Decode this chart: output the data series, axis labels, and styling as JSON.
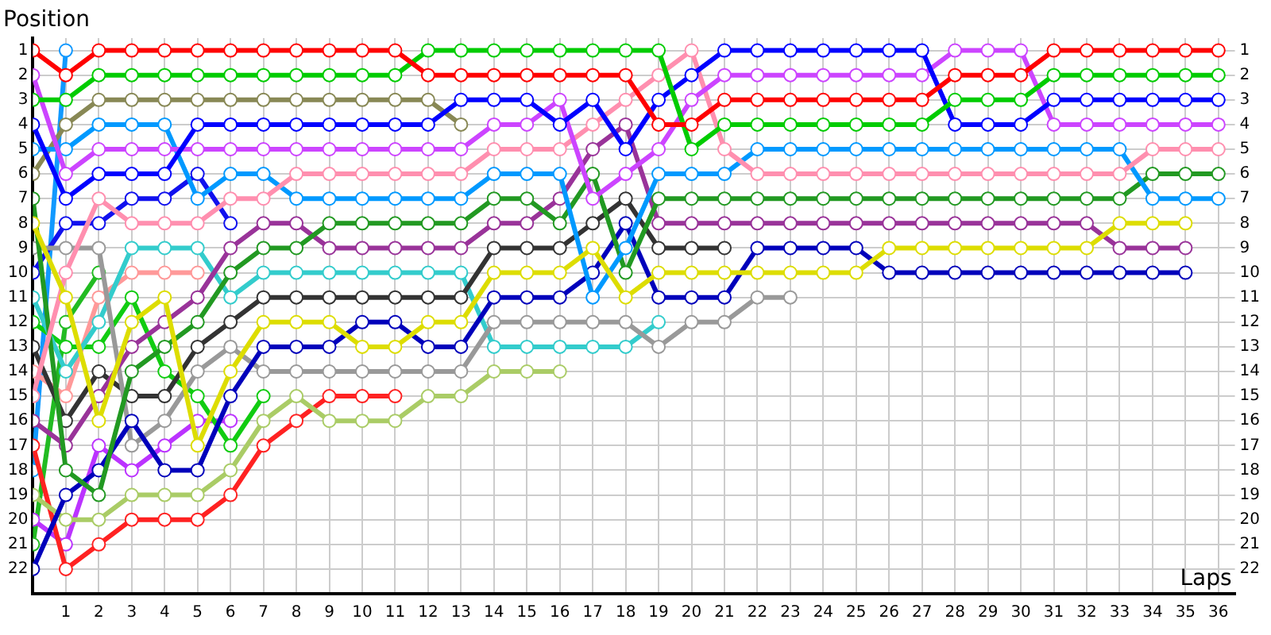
{
  "chart_data": {
    "type": "line",
    "xlabel": "Laps",
    "ylabel": "Position",
    "marker": "circle",
    "grid": true,
    "x": [
      0,
      1,
      2,
      3,
      4,
      5,
      6,
      7,
      8,
      9,
      10,
      11,
      12,
      13,
      14,
      15,
      16,
      17,
      18,
      19,
      20,
      21,
      22,
      23,
      24,
      25,
      26,
      27,
      28,
      29,
      30,
      31,
      32,
      33,
      34,
      35,
      36
    ],
    "xlim": [
      0,
      36.5
    ],
    "xticks": [
      1,
      2,
      3,
      4,
      5,
      6,
      7,
      8,
      9,
      10,
      11,
      12,
      13,
      14,
      15,
      16,
      17,
      18,
      19,
      20,
      21,
      22,
      23,
      24,
      25,
      26,
      27,
      28,
      29,
      30,
      31,
      32,
      33,
      34,
      35,
      36
    ],
    "ylim": [
      23,
      0.5
    ],
    "yticks": [
      1,
      2,
      3,
      4,
      5,
      6,
      7,
      8,
      9,
      10,
      11,
      12,
      13,
      14,
      15,
      16,
      17,
      18,
      19,
      20,
      21,
      22
    ],
    "y2lim": [
      23,
      0.5
    ],
    "y2ticks": [
      1,
      2,
      3,
      4,
      5,
      6,
      7,
      8,
      9,
      10,
      11,
      12,
      13,
      14,
      15,
      16,
      17,
      18,
      19,
      20,
      21,
      22
    ],
    "series": [
      {
        "color": "#ff0000",
        "values": [
          1,
          2,
          1,
          1,
          1,
          1,
          1,
          1,
          1,
          1,
          1,
          1,
          2,
          2,
          2,
          2,
          2,
          2,
          2,
          4,
          4,
          3,
          3,
          3,
          3,
          3,
          3,
          3,
          2,
          2,
          2,
          1,
          1,
          1,
          1,
          1,
          1
        ]
      },
      {
        "color": "#00cc00",
        "values": [
          3,
          3,
          2,
          2,
          2,
          2,
          2,
          2,
          2,
          2,
          2,
          2,
          1,
          1,
          1,
          1,
          1,
          1,
          1,
          1,
          5,
          4,
          4,
          4,
          4,
          4,
          4,
          4,
          3,
          3,
          3,
          2,
          2,
          2,
          2,
          2,
          2
        ]
      },
      {
        "color": "#0000ff",
        "values": [
          4,
          7,
          6,
          6,
          6,
          4,
          4,
          4,
          4,
          4,
          4,
          4,
          4,
          3,
          3,
          3,
          4,
          3,
          5,
          3,
          2,
          1,
          1,
          1,
          1,
          1,
          1,
          1,
          4,
          4,
          4,
          3,
          3,
          3,
          3,
          3,
          3
        ]
      },
      {
        "color": "#cc44ff",
        "values": [
          2,
          6,
          5,
          5,
          5,
          5,
          5,
          5,
          5,
          5,
          5,
          5,
          5,
          5,
          4,
          4,
          3,
          7,
          6,
          5,
          3,
          2,
          2,
          2,
          2,
          2,
          2,
          2,
          1,
          1,
          1,
          4,
          4,
          4,
          4,
          4,
          4
        ]
      },
      {
        "color": "#ff8faf",
        "values": [
          15,
          10,
          7,
          8,
          8,
          8,
          7,
          7,
          6,
          6,
          6,
          6,
          6,
          6,
          5,
          5,
          5,
          4,
          3,
          2,
          1,
          5,
          6,
          6,
          6,
          6,
          6,
          6,
          6,
          6,
          6,
          6,
          6,
          6,
          5,
          5,
          5
        ]
      },
      {
        "color": "#0099ff",
        "values": [
          5,
          5,
          4,
          4,
          4,
          7,
          6,
          6,
          7,
          7,
          7,
          7,
          7,
          7,
          6,
          6,
          6,
          11,
          9,
          6,
          6,
          6,
          5,
          5,
          5,
          5,
          5,
          5,
          5,
          5,
          5,
          5,
          5,
          5,
          7,
          7,
          7
        ]
      },
      {
        "color": "#229922",
        "values": [
          7,
          18,
          19,
          14,
          13,
          12,
          10,
          9,
          9,
          8,
          8,
          8,
          8,
          8,
          7,
          7,
          8,
          6,
          10,
          7,
          7,
          7,
          7,
          7,
          7,
          7,
          7,
          7,
          7,
          7,
          7,
          7,
          7,
          7,
          6,
          6,
          6
        ]
      },
      {
        "color": "#dddd00",
        "values": [
          8,
          11,
          16,
          12,
          11,
          17,
          14,
          12,
          12,
          12,
          13,
          13,
          12,
          12,
          10,
          10,
          10,
          9,
          11,
          10,
          10,
          10,
          10,
          10,
          10,
          10,
          9,
          9,
          9,
          9,
          9,
          9,
          9,
          8,
          8,
          8,
          null
        ]
      },
      {
        "color": "#993399",
        "values": [
          16,
          17,
          15,
          13,
          12,
          11,
          9,
          8,
          8,
          9,
          9,
          9,
          9,
          9,
          8,
          8,
          7,
          5,
          4,
          8,
          8,
          8,
          8,
          8,
          8,
          8,
          8,
          8,
          8,
          8,
          8,
          8,
          8,
          9,
          9,
          9,
          null
        ]
      },
      {
        "color": "#0000bb",
        "values": [
          22,
          19,
          18,
          16,
          18,
          18,
          15,
          13,
          13,
          13,
          12,
          12,
          13,
          13,
          11,
          11,
          11,
          10,
          8,
          11,
          11,
          11,
          9,
          9,
          9,
          9,
          10,
          10,
          10,
          10,
          10,
          10,
          10,
          10,
          10,
          10,
          null
        ]
      },
      {
        "color": "#999999",
        "values": [
          9,
          9,
          9,
          17,
          16,
          14,
          13,
          14,
          14,
          14,
          14,
          14,
          14,
          14,
          12,
          12,
          12,
          12,
          12,
          13,
          12,
          12,
          11,
          11,
          null,
          null,
          null,
          null,
          null,
          null,
          null,
          null,
          null,
          null,
          null,
          null,
          null
        ]
      },
      {
        "color": "#333333",
        "values": [
          13,
          16,
          14,
          15,
          15,
          13,
          12,
          11,
          11,
          11,
          11,
          11,
          11,
          11,
          9,
          9,
          9,
          8,
          7,
          9,
          9,
          9,
          null,
          null,
          null,
          null,
          null,
          null,
          null,
          null,
          null,
          null,
          null,
          null,
          null,
          null,
          null
        ]
      },
      {
        "color": "#33cccc",
        "values": [
          11,
          14,
          12,
          9,
          9,
          9,
          11,
          10,
          10,
          10,
          10,
          10,
          10,
          10,
          13,
          13,
          13,
          13,
          13,
          12,
          null,
          null,
          null,
          null,
          null,
          null,
          null,
          null,
          null,
          null,
          null,
          null,
          null,
          null,
          null,
          null,
          null
        ]
      },
      {
        "color": "#aacc66",
        "values": [
          19,
          20,
          20,
          19,
          19,
          19,
          18,
          16,
          15,
          16,
          16,
          16,
          15,
          15,
          14,
          14,
          14,
          null,
          null,
          null,
          null,
          null,
          null,
          null,
          null,
          null,
          null,
          null,
          null,
          null,
          null,
          null,
          null,
          null,
          null,
          null,
          null
        ]
      },
      {
        "color": "#888855",
        "values": [
          6,
          4,
          3,
          3,
          3,
          3,
          3,
          3,
          3,
          3,
          3,
          3,
          3,
          4,
          null,
          null,
          null,
          null,
          null,
          null,
          null,
          null,
          null,
          null,
          null,
          null,
          null,
          null,
          null,
          null,
          null,
          null,
          null,
          null,
          null,
          null,
          null
        ]
      },
      {
        "color": "#ff2222",
        "values": [
          17,
          22,
          21,
          20,
          20,
          20,
          19,
          17,
          16,
          15,
          15,
          15,
          null,
          null,
          null,
          null,
          null,
          null,
          null,
          null,
          null,
          null,
          null,
          null,
          null,
          null,
          null,
          null,
          null,
          null,
          null,
          null,
          null,
          null,
          null,
          null,
          null
        ]
      },
      {
        "color": "#11cc11",
        "values": [
          12,
          13,
          13,
          11,
          14,
          15,
          17,
          15,
          null,
          null,
          null,
          null,
          null,
          null,
          null,
          null,
          null,
          null,
          null,
          null,
          null,
          null,
          null,
          null,
          null,
          null,
          null,
          null,
          null,
          null,
          null,
          null,
          null,
          null,
          null,
          null,
          null
        ]
      },
      {
        "color": "#1111ee",
        "values": [
          10,
          8,
          8,
          7,
          7,
          6,
          8,
          null,
          null,
          null,
          null,
          null,
          null,
          null,
          null,
          null,
          null,
          null,
          null,
          null,
          null,
          null,
          null,
          null,
          null,
          null,
          null,
          null,
          null,
          null,
          null,
          null,
          null,
          null,
          null,
          null,
          null
        ]
      },
      {
        "color": "#bb33ff",
        "values": [
          20,
          21,
          17,
          18,
          17,
          16,
          16,
          null,
          null,
          null,
          null,
          null,
          null,
          null,
          null,
          null,
          null,
          null,
          null,
          null,
          null,
          null,
          null,
          null,
          null,
          null,
          null,
          null,
          null,
          null,
          null,
          null,
          null,
          null,
          null,
          null,
          null
        ]
      },
      {
        "color": "#ff9999",
        "values": [
          14,
          15,
          11,
          10,
          10,
          10,
          null,
          null,
          null,
          null,
          null,
          null,
          null,
          null,
          null,
          null,
          null,
          null,
          null,
          null,
          null,
          null,
          null,
          null,
          null,
          null,
          null,
          null,
          null,
          null,
          null,
          null,
          null,
          null,
          null,
          null,
          null
        ]
      },
      {
        "color": "#22bb22",
        "values": [
          21,
          12,
          10,
          null,
          null,
          null,
          null,
          null,
          null,
          null,
          null,
          null,
          null,
          null,
          null,
          null,
          null,
          null,
          null,
          null,
          null,
          null,
          null,
          null,
          null,
          null,
          null,
          null,
          null,
          null,
          null,
          null,
          null,
          null,
          null,
          null,
          null
        ]
      },
      {
        "color": "#1199ff",
        "values": [
          18,
          1,
          null,
          null,
          null,
          null,
          null,
          null,
          null,
          null,
          null,
          null,
          null,
          null,
          null,
          null,
          null,
          null,
          null,
          null,
          null,
          null,
          null,
          null,
          null,
          null,
          null,
          null,
          null,
          null,
          null,
          null,
          null,
          null,
          null,
          null,
          null
        ]
      }
    ]
  }
}
